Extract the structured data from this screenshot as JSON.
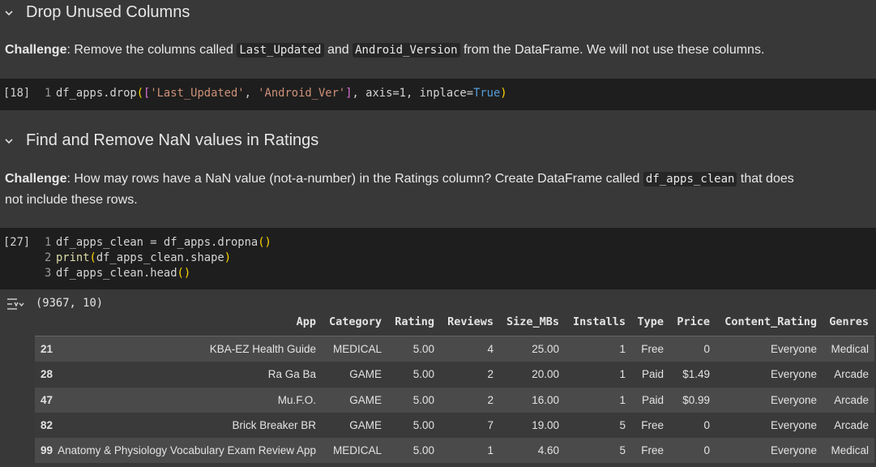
{
  "heading_1": "Drop Unused Columns",
  "text_1": [
    "Challenge",
    ": Remove the columns called ",
    "Last_Updated",
    " and ",
    "Android_Version",
    " from the DataFrame. We will not use these columns."
  ],
  "code_1": {
    "exec_count": "[18]",
    "lines": [
      {
        "number": 1,
        "tokens": [
          "df_apps.drop",
          "(",
          "[",
          "'Last_Updated'",
          ", ",
          "'Android_Ver'",
          "]",
          ", axis=1, inplace=",
          "True",
          ")"
        ]
      }
    ]
  },
  "heading_2": "Find and Remove NaN values in Ratings",
  "text_2": [
    "Challenge",
    ": How may rows have a NaN value (not-a-number) in the Ratings column? Create DataFrame called ",
    "df_apps_clean",
    " that does not include these rows."
  ],
  "code_2": {
    "exec_count": "[27]",
    "lines": [
      {
        "number": 1,
        "tokens": [
          "df_apps_clean = df_apps.dropna",
          "(",
          ")"
        ]
      },
      {
        "number": 2,
        "tokens": [
          "print",
          "(",
          "df_apps_clean.shape",
          ")"
        ]
      },
      {
        "number": 3,
        "tokens": [
          "df_apps_clean.head",
          "(",
          ")"
        ]
      }
    ]
  },
  "output": {
    "shape": "(9367, 10)",
    "table": {
      "header": [
        "App",
        "Category",
        "Rating",
        "Reviews",
        "Size_MBs",
        "Installs",
        "Type",
        "Price",
        "Content_Rating",
        "Genres"
      ],
      "rows": [
        [
          "21",
          "KBA-EZ Health Guide",
          "MEDICAL",
          "5.00",
          "4",
          "25.00",
          "1",
          "Free",
          "0",
          "Everyone",
          "Medical"
        ],
        [
          "28",
          "Ra Ga Ba",
          "GAME",
          "5.00",
          "2",
          "20.00",
          "1",
          "Paid",
          "$1.49",
          "Everyone",
          "Arcade"
        ],
        [
          "47",
          "Mu.F.O.",
          "GAME",
          "5.00",
          "2",
          "16.00",
          "1",
          "Paid",
          "$0.99",
          "Everyone",
          "Arcade"
        ],
        [
          "82",
          "Brick Breaker BR",
          "GAME",
          "5.00",
          "7",
          "19.00",
          "5",
          "Free",
          "0",
          "Everyone",
          "Arcade"
        ],
        [
          "99",
          "Anatomy & Physiology Vocabulary Exam Review App",
          "MEDICAL",
          "5.00",
          "1",
          "4.60",
          "5",
          "Free",
          "0",
          "Everyone",
          "Medical"
        ]
      ]
    }
  }
}
